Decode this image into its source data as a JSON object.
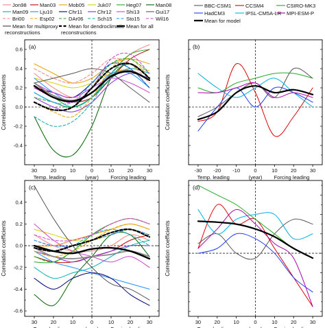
{
  "legend_left": {
    "entries": [
      {
        "name": "Jon98",
        "color": "#ff8080",
        "dash": "solid",
        "width": 1
      },
      {
        "name": "Man03",
        "color": "#c00000",
        "dash": "solid",
        "width": 1
      },
      {
        "name": "Mob05",
        "color": "#e8a000",
        "dash": "solid",
        "width": 1
      },
      {
        "name": "Juk07",
        "color": "#d8d000",
        "dash": "solid",
        "width": 1
      },
      {
        "name": "Heg07",
        "color": "#22aa22",
        "dash": "solid",
        "width": 1
      },
      {
        "name": "Man08",
        "color": "#006400",
        "dash": "solid",
        "width": 1
      },
      {
        "name": "Man09",
        "color": "#00b0b0",
        "dash": "solid",
        "width": 1
      },
      {
        "name": "Lju10",
        "color": "#1e90ff",
        "dash": "solid",
        "width": 1
      },
      {
        "name": "Chr11",
        "color": "#000080",
        "dash": "solid",
        "width": 1
      },
      {
        "name": "Chr12",
        "color": "#8a2be2",
        "dash": "solid",
        "width": 1
      },
      {
        "name": "Shi13",
        "color": "#cc44cc",
        "dash": "solid",
        "width": 1
      },
      {
        "name": "Gui17",
        "color": "#555555",
        "dash": "solid",
        "width": 1
      },
      {
        "name": "Bri00",
        "color": "#ff8080",
        "dash": "dash",
        "width": 1
      },
      {
        "name": "Esp02",
        "color": "#e8a000",
        "dash": "dash",
        "width": 1
      },
      {
        "name": "DAr06",
        "color": "#22aa22",
        "dash": "dash",
        "width": 1
      },
      {
        "name": "Sch15",
        "color": "#00b0b0",
        "dash": "dash",
        "width": 1
      },
      {
        "name": "Sto15",
        "color": "#1e90ff",
        "dash": "dash",
        "width": 1
      },
      {
        "name": "Wil16",
        "color": "#cc44cc",
        "dash": "dash",
        "width": 1
      }
    ],
    "means": [
      {
        "line1": "Mean for multiproxy",
        "line2": "reconstructions",
        "color": "#888888",
        "dash": "solid",
        "width": 1.8
      },
      {
        "line1": "Mean for dendroclimatic",
        "line2": "reconstructions",
        "color": "#000000",
        "dash": "dash",
        "width": 2.2
      },
      {
        "line1": "Mean for all",
        "line2": "",
        "color": "#000000",
        "dash": "solid",
        "width": 2.4
      }
    ]
  },
  "legend_right": {
    "entries": [
      {
        "name": "BBC-CSM1",
        "color": "#555555",
        "dash": "solid",
        "width": 1
      },
      {
        "name": "CCSM4",
        "color": "#dd0000",
        "dash": "solid",
        "width": 1
      },
      {
        "name": "CSIRO-MK3",
        "color": "#22aa22",
        "dash": "solid",
        "width": 1
      },
      {
        "name": "HadCM3",
        "color": "#1e3cff",
        "dash": "solid",
        "width": 1
      },
      {
        "name": "IPSL-CM5A-LR",
        "color": "#00b0e0",
        "dash": "solid",
        "width": 1
      },
      {
        "name": "MPI-ESM-P",
        "color": "#aa00aa",
        "dash": "solid",
        "width": 1
      },
      {
        "name": "Mean for model",
        "color": "#000000",
        "dash": "solid",
        "width": 2.2
      }
    ]
  },
  "axes": {
    "ylabel": "Correlation coefficients",
    "xlabel_left": "Temp. leading",
    "xlabel_mid": "(year)",
    "xlabel_right": "Forcing leading"
  },
  "chart_data": [
    {
      "panel": "(a)",
      "type": "line",
      "xlim": [
        -35,
        35
      ],
      "ylim": [
        -0.6,
        0.7
      ],
      "xticks": [
        -30,
        -20,
        -10,
        0,
        10,
        20,
        30
      ],
      "xticklabels": [
        "30",
        "20",
        "10",
        "0",
        "10",
        "20",
        "30"
      ],
      "yticks": [
        -0.4,
        -0.2,
        0.0,
        0.2,
        0.4,
        0.6
      ],
      "yticklabels": [
        "-0.4",
        "-0.2",
        "0.0",
        "0.2",
        "0.4",
        "0.6"
      ],
      "x": [
        -30,
        -20,
        -10,
        0,
        10,
        20,
        30
      ],
      "series": [
        {
          "name": "Jon98",
          "values": [
            0.35,
            0.2,
            0.1,
            0.15,
            0.35,
            0.55,
            0.65
          ]
        },
        {
          "name": "Man03",
          "values": [
            0.25,
            0.1,
            0.05,
            0.1,
            0.3,
            0.5,
            0.6
          ]
        },
        {
          "name": "Mob05",
          "values": [
            0.45,
            0.35,
            0.25,
            0.3,
            0.45,
            0.5,
            0.45
          ]
        },
        {
          "name": "Juk07",
          "values": [
            0.3,
            0.25,
            0.2,
            0.25,
            0.35,
            0.4,
            0.38
          ]
        },
        {
          "name": "Heg07",
          "values": [
            0.2,
            0.1,
            0.0,
            0.1,
            0.35,
            0.55,
            0.6
          ]
        },
        {
          "name": "Man08",
          "values": [
            -0.1,
            -0.45,
            -0.5,
            -0.2,
            0.3,
            0.45,
            0.3
          ]
        },
        {
          "name": "Man09",
          "values": [
            0.15,
            0.05,
            0.0,
            0.1,
            0.3,
            0.4,
            0.35
          ]
        },
        {
          "name": "Lju10",
          "values": [
            0.3,
            0.15,
            0.05,
            0.15,
            0.35,
            0.35,
            0.2
          ]
        },
        {
          "name": "Chr11",
          "values": [
            0.2,
            0.15,
            0.1,
            0.25,
            0.45,
            0.4,
            0.2
          ]
        },
        {
          "name": "Chr12",
          "values": [
            0.1,
            0.0,
            -0.05,
            0.05,
            0.25,
            0.35,
            0.3
          ]
        },
        {
          "name": "Shi13",
          "values": [
            0.25,
            0.15,
            0.1,
            0.2,
            0.3,
            0.25,
            0.15
          ]
        },
        {
          "name": "Gui17",
          "values": [
            0.25,
            0.3,
            0.35,
            0.4,
            0.35,
            0.2,
            0.05
          ]
        },
        {
          "name": "Bri00",
          "values": [
            0.4,
            0.3,
            0.25,
            0.35,
            0.5,
            0.45,
            0.25
          ]
        },
        {
          "name": "Esp02",
          "values": [
            0.05,
            -0.05,
            -0.1,
            0.1,
            0.4,
            0.5,
            0.3
          ]
        },
        {
          "name": "DAr06",
          "values": [
            0.1,
            0.05,
            0.0,
            0.2,
            0.45,
            0.5,
            0.35
          ]
        },
        {
          "name": "Sch15",
          "values": [
            -0.1,
            -0.2,
            -0.15,
            0.05,
            0.35,
            0.45,
            0.3
          ]
        },
        {
          "name": "Sto15",
          "values": [
            0.15,
            0.05,
            0.05,
            0.25,
            0.45,
            0.4,
            0.2
          ]
        },
        {
          "name": "Wil16",
          "values": [
            0.2,
            0.1,
            0.05,
            0.2,
            0.5,
            0.55,
            0.35
          ]
        },
        {
          "name": "Mean for multiproxy reconstructions",
          "values": [
            0.25,
            0.12,
            0.07,
            0.15,
            0.33,
            0.38,
            0.28
          ]
        },
        {
          "name": "Mean for dendroclimatic reconstructions",
          "values": [
            0.05,
            -0.03,
            0.0,
            0.2,
            0.4,
            0.45,
            0.3
          ]
        },
        {
          "name": "Mean for all",
          "values": [
            0.22,
            0.1,
            0.06,
            0.15,
            0.32,
            0.37,
            0.28
          ]
        }
      ]
    },
    {
      "panel": "(b)",
      "type": "line",
      "xlim": [
        -35,
        35
      ],
      "ylim": [
        -0.6,
        0.7
      ],
      "xticks": [
        -30,
        -20,
        -10,
        0,
        10,
        20,
        30
      ],
      "xticklabels": [
        "-30",
        "-20",
        "-10",
        "0",
        "10",
        "20",
        "30"
      ],
      "yticks": [],
      "yticklabels": [],
      "x": [
        -30,
        -20,
        -10,
        0,
        10,
        20,
        30
      ],
      "series": [
        {
          "name": "BBC-CSM1",
          "values": [
            -0.1,
            0.0,
            0.15,
            0.25,
            0.1,
            0.4,
            0.3
          ]
        },
        {
          "name": "CCSM4",
          "values": [
            -0.15,
            -0.05,
            0.45,
            0.15,
            -0.3,
            -0.1,
            0.2
          ]
        },
        {
          "name": "CSIRO-MK3",
          "values": [
            0.2,
            0.15,
            0.25,
            0.3,
            0.35,
            0.35,
            0.3
          ]
        },
        {
          "name": "HadCM3",
          "values": [
            -0.25,
            0.0,
            0.2,
            0.0,
            0.2,
            0.15,
            0.05
          ]
        },
        {
          "name": "IPSL-CM5A-LR",
          "values": [
            0.35,
            0.2,
            0.1,
            0.2,
            0.3,
            0.15,
            0.0
          ]
        },
        {
          "name": "MPI-ESM-P",
          "values": [
            0.15,
            0.15,
            0.2,
            0.25,
            0.1,
            0.15,
            0.1
          ]
        },
        {
          "name": "Mean for model",
          "values": [
            -0.13,
            -0.05,
            0.15,
            0.22,
            0.15,
            0.18,
            0.13
          ]
        }
      ]
    },
    {
      "panel": "(c)",
      "type": "line",
      "xlim": [
        -35,
        35
      ],
      "ylim": [
        -0.65,
        0.6
      ],
      "xticks": [
        -30,
        -20,
        -10,
        0,
        10,
        20,
        30
      ],
      "xticklabels": [
        "30",
        "20",
        "10",
        "0",
        "10",
        "20",
        "30"
      ],
      "yticks": [
        -0.6,
        -0.4,
        -0.2,
        0.0,
        0.2,
        0.4
      ],
      "yticklabels": [
        "-0.6",
        "-0.4",
        "-0.2",
        "0.0",
        "0.2",
        "0.4"
      ],
      "x": [
        -30,
        -20,
        -10,
        0,
        10,
        20,
        30
      ],
      "series": [
        {
          "name": "Jon98",
          "values": [
            0.1,
            0.0,
            -0.05,
            -0.05,
            0.0,
            0.1,
            0.05
          ]
        },
        {
          "name": "Man03",
          "values": [
            -0.1,
            -0.15,
            -0.15,
            -0.1,
            -0.05,
            0.05,
            0.1
          ]
        },
        {
          "name": "Mob05",
          "values": [
            0.0,
            0.0,
            0.05,
            0.1,
            0.15,
            0.2,
            0.15
          ]
        },
        {
          "name": "Juk07",
          "values": [
            0.15,
            0.1,
            0.05,
            0.05,
            0.1,
            0.15,
            0.1
          ]
        },
        {
          "name": "Heg07",
          "values": [
            -0.15,
            -0.15,
            -0.05,
            0.1,
            0.2,
            0.25,
            0.2
          ]
        },
        {
          "name": "Man08",
          "values": [
            -0.45,
            -0.55,
            -0.3,
            -0.1,
            0.1,
            0.1,
            -0.1
          ]
        },
        {
          "name": "Man09",
          "values": [
            -0.2,
            -0.3,
            -0.25,
            -0.2,
            -0.1,
            0.0,
            0.05
          ]
        },
        {
          "name": "Lju10",
          "values": [
            -0.05,
            -0.15,
            -0.2,
            -0.25,
            -0.3,
            -0.35,
            -0.4
          ]
        },
        {
          "name": "Chr11",
          "values": [
            -0.3,
            -0.4,
            -0.3,
            -0.25,
            -0.3,
            -0.45,
            -0.55
          ]
        },
        {
          "name": "Chr12",
          "values": [
            -0.05,
            -0.1,
            -0.15,
            -0.1,
            -0.05,
            0.0,
            0.0
          ]
        },
        {
          "name": "Shi13",
          "values": [
            0.2,
            0.05,
            -0.05,
            -0.1,
            -0.15,
            -0.1,
            -0.2
          ]
        },
        {
          "name": "Gui17",
          "values": [
            0.55,
            0.25,
            0.0,
            -0.2,
            -0.35,
            -0.4,
            -0.5
          ]
        },
        {
          "name": "Bri00",
          "values": [
            0.05,
            0.0,
            0.05,
            0.1,
            0.2,
            0.25,
            0.2
          ]
        },
        {
          "name": "Esp02",
          "values": [
            -0.05,
            -0.1,
            -0.05,
            0.05,
            0.15,
            0.2,
            0.15
          ]
        },
        {
          "name": "DAr06",
          "values": [
            -0.1,
            -0.15,
            -0.05,
            0.1,
            0.2,
            0.25,
            0.2
          ]
        },
        {
          "name": "Sch15",
          "values": [
            0.0,
            -0.05,
            0.0,
            0.1,
            0.15,
            0.1,
            0.0
          ]
        },
        {
          "name": "Sto15",
          "values": [
            0.05,
            0.0,
            0.0,
            0.05,
            0.1,
            0.15,
            0.1
          ]
        },
        {
          "name": "Wil16",
          "values": [
            0.1,
            0.05,
            0.05,
            0.1,
            0.2,
            0.25,
            0.2
          ]
        },
        {
          "name": "Mean for multiproxy reconstructions",
          "values": [
            -0.02,
            -0.1,
            -0.12,
            -0.1,
            -0.08,
            -0.05,
            -0.1
          ]
        },
        {
          "name": "Mean for dendroclimatic reconstructions",
          "values": [
            -0.02,
            -0.05,
            0.0,
            0.05,
            0.12,
            0.15,
            0.08
          ]
        },
        {
          "name": "Mean for all",
          "values": [
            0.0,
            -0.05,
            -0.07,
            -0.03,
            -0.02,
            -0.05,
            -0.12
          ]
        }
      ]
    },
    {
      "panel": "(d)",
      "type": "line",
      "xlim": [
        -35,
        35
      ],
      "ylim": [
        -0.65,
        0.75
      ],
      "xticks": [
        -30,
        -20,
        -10,
        0,
        10,
        20,
        30
      ],
      "xticklabels": [
        "30",
        "20",
        "10",
        "0",
        "10",
        "20",
        "30"
      ],
      "yticks": [],
      "yticklabels": [],
      "x": [
        -30,
        -20,
        -10,
        0,
        10,
        20,
        30
      ],
      "series": [
        {
          "name": "BBC-CSM1",
          "values": [
            0.1,
            0.2,
            0.0,
            -0.05,
            0.2,
            0.35,
            0.3
          ]
        },
        {
          "name": "CCSM4",
          "values": [
            0.05,
            0.5,
            0.3,
            0.35,
            0.05,
            -0.25,
            -0.55
          ]
        },
        {
          "name": "CSIRO-MK3",
          "values": [
            0.7,
            0.6,
            0.5,
            0.35,
            0.2,
            0.05,
            -0.05
          ]
        },
        {
          "name": "HadCM3",
          "values": [
            0.0,
            0.05,
            0.2,
            0.15,
            0.0,
            -0.25,
            -0.4
          ]
        },
        {
          "name": "IPSL-CM5A-LR",
          "values": [
            0.45,
            0.2,
            0.35,
            0.4,
            0.4,
            0.15,
            0.2
          ]
        },
        {
          "name": "MPI-ESM-P",
          "values": [
            0.05,
            0.25,
            0.45,
            0.3,
            0.1,
            -0.05,
            -0.55
          ]
        },
        {
          "name": "Mean for model",
          "values": [
            0.33,
            0.32,
            0.3,
            0.25,
            0.17,
            0.05,
            -0.05
          ]
        }
      ]
    }
  ]
}
